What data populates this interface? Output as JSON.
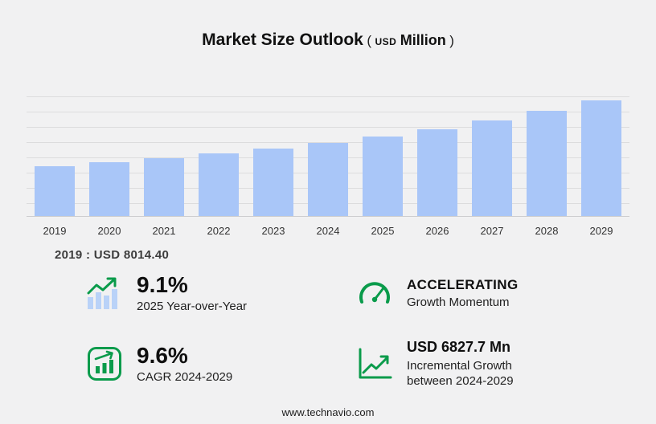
{
  "title": {
    "main": "Market Size Outlook",
    "paren_open": "(",
    "currency": "USD",
    "unit": "Million",
    "paren_close": ")"
  },
  "chart_data": {
    "type": "bar",
    "title": "Market Size Outlook (USD Million)",
    "categories": [
      "2019",
      "2020",
      "2021",
      "2022",
      "2023",
      "2024",
      "2025",
      "2026",
      "2027",
      "2028",
      "2029"
    ],
    "values": [
      8014.4,
      8600,
      9270,
      10030,
      10870,
      11742,
      12811,
      13980,
      15350,
      16880,
      18570
    ],
    "xlabel": "",
    "ylabel": "",
    "ylim": [
      0,
      19200
    ],
    "grid": true,
    "legend": "none",
    "bar_color": "#a9c6f8"
  },
  "base_note": {
    "text": "2019 : USD  8014.40"
  },
  "stats": [
    {
      "icon": "growth-bars-icon",
      "value": "9.1%",
      "label": "2025 Year-over-Year"
    },
    {
      "icon": "speedometer-icon",
      "value": "ACCELERATING",
      "label": "Growth Momentum"
    },
    {
      "icon": "cagr-chart-icon",
      "value": "9.6%",
      "label": "CAGR 2024-2029"
    },
    {
      "icon": "incremental-growth-icon",
      "value": "USD 6827.7 Mn",
      "label": "Incremental Growth between 2024-2029"
    }
  ],
  "footer": {
    "website": "www.technavio.com"
  },
  "colors": {
    "accent_green": "#0a9b4b",
    "bar_blue": "#a9c6f8",
    "grid_gray": "#dcdcdd"
  }
}
